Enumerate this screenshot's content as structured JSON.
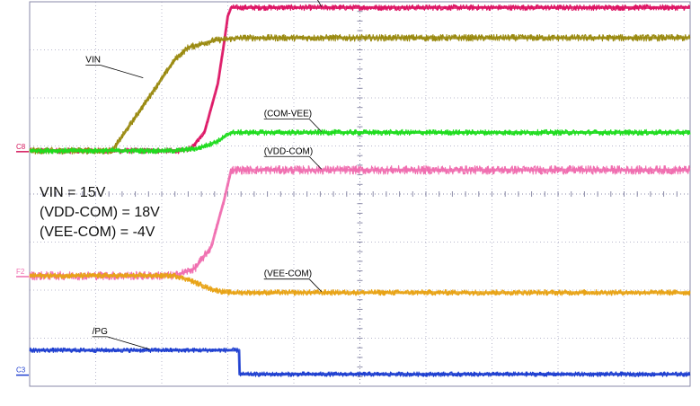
{
  "chart_data": {
    "type": "line",
    "x_divisions": 10,
    "y_divisions": 8,
    "grid": true,
    "annotations": [
      "VIN = 15V",
      "(VDD-COM) = 18V",
      "(VEE-COM) = -4V"
    ],
    "channel_markers": [
      {
        "label": "C8",
        "color": "#d4145a",
        "level_div": 4.9
      },
      {
        "label": "F2",
        "color": "#f06fb0",
        "level_div": 2.3
      },
      {
        "label": "C3",
        "color": "#1f3fd0",
        "level_div": 0.25
      }
    ],
    "series": [
      {
        "name": "(VDD--VEE)",
        "color": "#dd1464",
        "noise_div": 0.06,
        "x": [
          0.0,
          2.3,
          2.45,
          2.65,
          2.85,
          2.95,
          3.0,
          3.05,
          10.0
        ],
        "y": [
          4.9,
          4.9,
          4.95,
          5.3,
          6.3,
          7.2,
          7.7,
          7.88,
          7.88
        ],
        "label_at": {
          "x": 4.5,
          "y": 7.88
        }
      },
      {
        "name": "VIN",
        "color": "#9a8a10",
        "noise_div": 0.07,
        "x": [
          0.0,
          1.25,
          2.2,
          2.4,
          2.8,
          3.2,
          10.0
        ],
        "y": [
          4.9,
          4.9,
          6.8,
          7.05,
          7.2,
          7.25,
          7.25
        ],
        "label_at": {
          "x": 1.8,
          "y": 6.4
        }
      },
      {
        "name": "(COM-VEE)",
        "color": "#1fdc1f",
        "noise_div": 0.06,
        "x": [
          0.0,
          2.2,
          2.55,
          2.85,
          3.05,
          10.0
        ],
        "y": [
          4.9,
          4.9,
          4.95,
          5.1,
          5.28,
          5.28
        ],
        "label_at": {
          "x": 4.5,
          "y": 5.28
        }
      },
      {
        "name": "(VDD-COM)",
        "color": "#f06fb0",
        "noise_div": 0.09,
        "x": [
          0.0,
          2.2,
          2.5,
          2.75,
          2.95,
          3.05,
          10.0
        ],
        "y": [
          2.3,
          2.3,
          2.45,
          2.9,
          3.9,
          4.5,
          4.5
        ],
        "label_at": {
          "x": 4.5,
          "y": 4.5
        }
      },
      {
        "name": "(VEE-COM)",
        "color": "#e8a316",
        "noise_div": 0.06,
        "x": [
          0.0,
          2.2,
          2.4,
          2.75,
          3.0,
          10.0
        ],
        "y": [
          2.3,
          2.3,
          2.22,
          2.02,
          1.95,
          1.95
        ],
        "label_at": {
          "x": 4.5,
          "y": 1.95
        }
      },
      {
        "name": "/PG",
        "color": "#1f3fd0",
        "noise_div": 0.05,
        "x": [
          0.0,
          3.17,
          3.18,
          10.0
        ],
        "y": [
          0.75,
          0.75,
          0.25,
          0.25
        ],
        "label_at": {
          "x": 1.9,
          "y": 0.75
        }
      }
    ]
  }
}
